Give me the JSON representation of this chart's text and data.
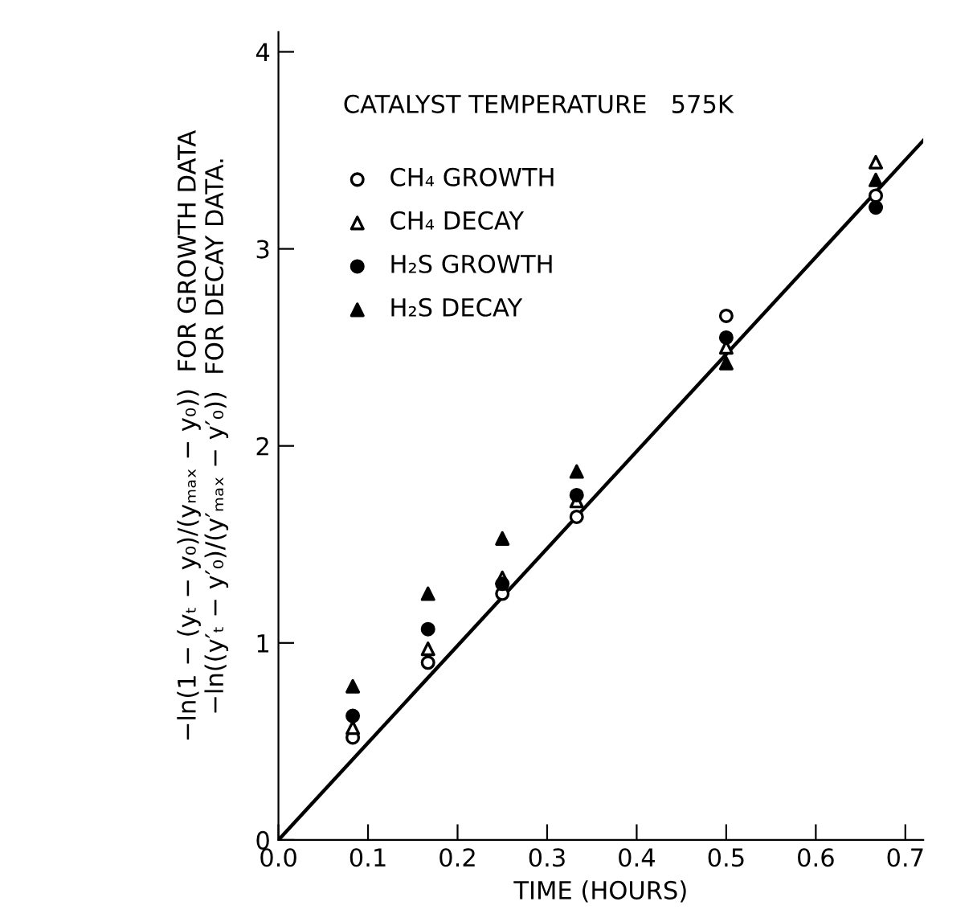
{
  "chart_data": {
    "type": "scatter",
    "title": "CATALYST TEMPERATURE   575K",
    "xlabel": "TIME (HOURS)",
    "ylabel": "−ln(1 − (yₜ − y₀)/(yₘₐₓ − y₀))  FOR GROWTH DATA\n−ln((y′ₜ − y′₀)/(y′ₘₐₓ − y′₀))  FOR DECAY DATA.",
    "x": [
      0.083,
      0.167,
      0.25,
      0.333,
      0.5,
      0.667
    ],
    "series": [
      {
        "name": "CH₄ GROWTH",
        "color": "#000000",
        "marker": "circle_open",
        "values": [
          0.52,
          0.9,
          1.25,
          1.64,
          2.66,
          3.27
        ]
      },
      {
        "name": "CH₄ DECAY",
        "color": "#000000",
        "marker": "triangle_open",
        "values": [
          0.57,
          0.97,
          1.33,
          1.72,
          2.5,
          3.44
        ]
      },
      {
        "name": "H₂S GROWTH",
        "color": "#000000",
        "marker": "circle",
        "values": [
          0.63,
          1.07,
          1.3,
          1.75,
          2.55,
          3.21
        ]
      },
      {
        "name": "H₂S DECAY",
        "color": "#000000",
        "marker": "triangle",
        "values": [
          0.78,
          1.25,
          1.53,
          1.87,
          2.42,
          3.35
        ]
      },
      {
        "type": "line",
        "color": "#000000",
        "x": [
          0,
          0.72
        ],
        "values": [
          0,
          3.55
        ]
      }
    ],
    "xlim": [
      0,
      0.72
    ],
    "ylim": [
      0,
      4.1
    ],
    "xticks": [
      {
        "value": 0,
        "label": "0.0"
      },
      {
        "value": 0.1,
        "label": "0.1"
      },
      {
        "value": 0.2,
        "label": "0.2"
      },
      {
        "value": 0.3,
        "label": "0.3"
      },
      {
        "value": 0.4,
        "label": "0.4"
      },
      {
        "value": 0.5,
        "label": "0.5"
      },
      {
        "value": 0.6,
        "label": "0.6"
      },
      {
        "value": 0.7,
        "label": "0.7"
      }
    ],
    "yticks": [
      0,
      1,
      2,
      3,
      4
    ],
    "legend": "top left",
    "grid": false
  }
}
